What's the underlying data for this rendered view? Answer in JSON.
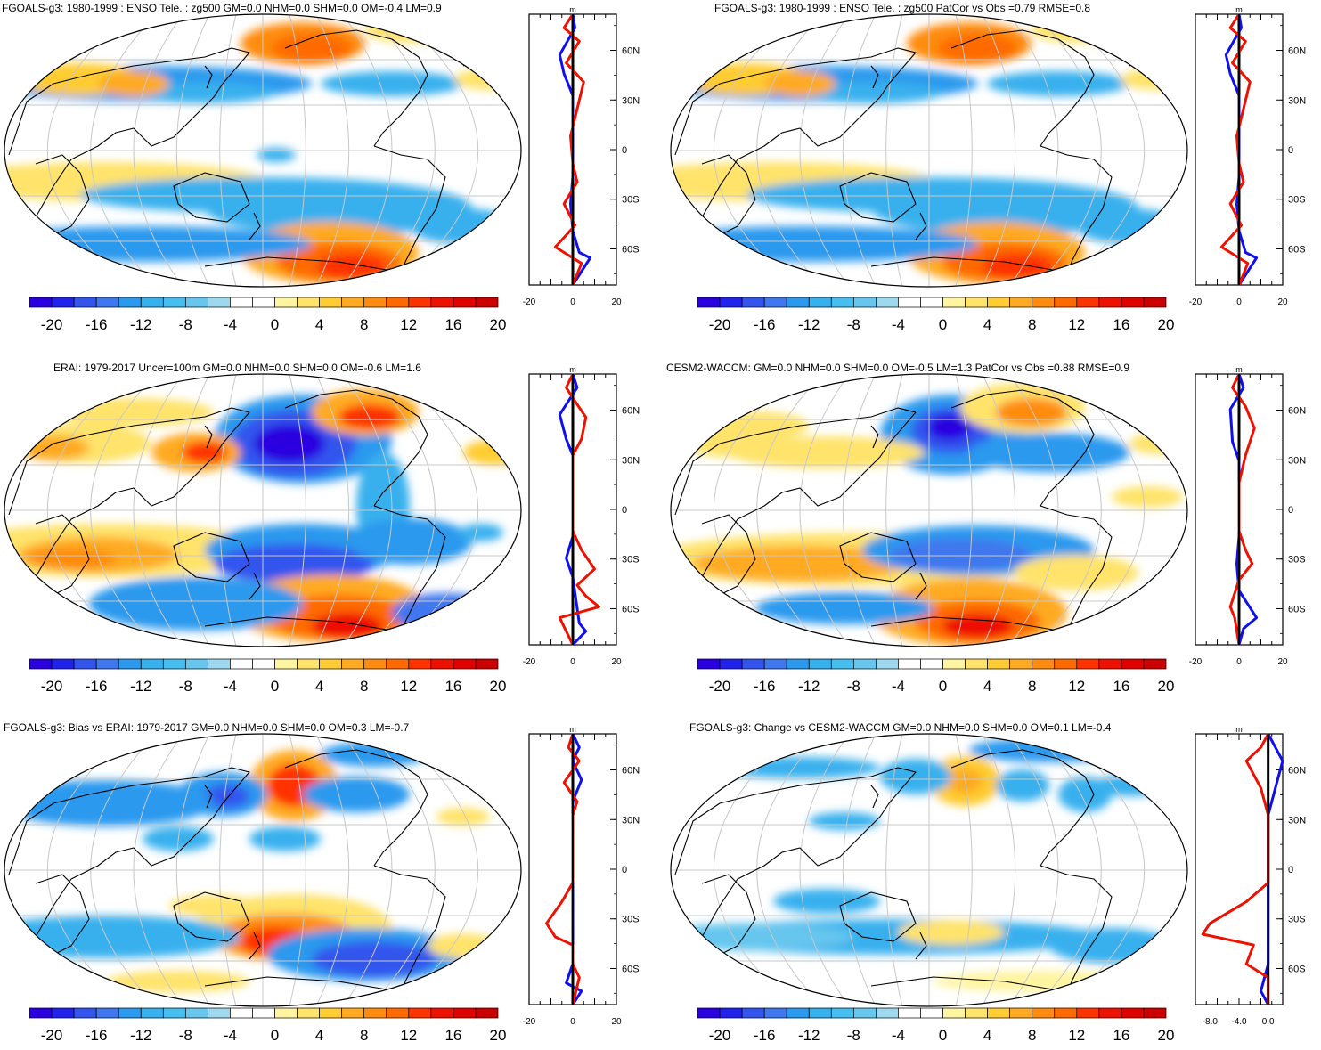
{
  "palette": [
    "#2a00e0",
    "#2222ee",
    "#3355ee",
    "#3f77ee",
    "#2a99ee",
    "#37b0ee",
    "#66c6ee",
    "#9ed8ef",
    "#ffffff",
    "#ffffff",
    "#fff4a0",
    "#ffe36a",
    "#ffcc33",
    "#ffaa22",
    "#ff8c11",
    "#ff6a00",
    "#ff3300",
    "#ee1100",
    "#cc0000"
  ],
  "colorbar_labels": [
    "-20",
    "-16",
    "-12",
    "-8",
    "-4",
    "0",
    "4",
    "8",
    "12",
    "16",
    "20"
  ],
  "lat_labels": [
    "60N",
    "30N",
    "0",
    "30S",
    "60S"
  ],
  "panels": [
    {
      "title": "FGOALS-g3: 1980-1999 : ENSO Tele. : zg500 GM=0.0 NHM=0.0 SHM=0.0 OM=-0.4 LM=0.9",
      "unit": "m",
      "xticks": [
        "-20",
        "0",
        "20"
      ]
    },
    {
      "title": "FGOALS-g3: 1980-1999 : ENSO Tele. : zg500 PatCor vs Obs =0.79 RMSE=0.8",
      "unit": "m",
      "xticks": [
        "-20",
        "0",
        "20"
      ]
    },
    {
      "title": "ERAI: 1979-2017 Uncer=100m GM=0.0 NHM=0.0 SHM=0.0 OM=-0.6 LM=1.6",
      "unit": "m",
      "xticks": [
        "-20",
        "0",
        "20"
      ]
    },
    {
      "title": "CESM2-WACCM: GM=0.0 NHM=0.0 SHM=0.0 OM=-0.5 LM=1.3 PatCor vs Obs =0.88 RMSE=0.9",
      "unit": "m",
      "xticks": [
        "-20",
        "0",
        "20"
      ]
    },
    {
      "title": "FGOALS-g3: Bias vs ERAI: 1979-2017 GM=0.0 NHM=0.0 SHM=0.0 OM=0.3 LM=-0.7",
      "unit": "m",
      "xticks": [
        "-20",
        "0",
        "20"
      ]
    },
    {
      "title": "FGOALS-g3: Change vs CESM2-WACCM GM=0.0 NHM=0.0 SHM=0.0 OM=0.1 LM=-0.4",
      "unit": "m",
      "xticks": [
        "-8.0",
        "-4.0",
        "0.0"
      ]
    }
  ]
}
